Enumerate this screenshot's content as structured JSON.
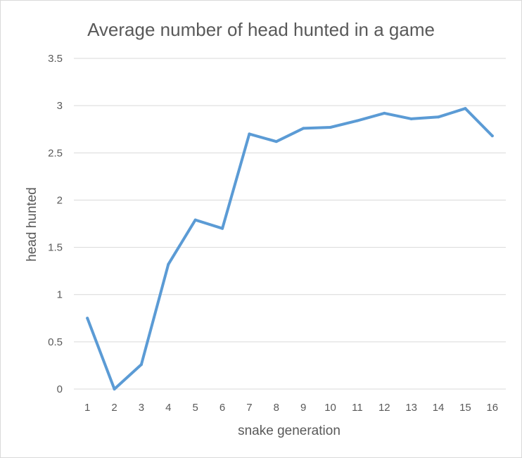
{
  "chart_data": {
    "type": "line",
    "title": "Average number of head hunted in a game",
    "xlabel": "snake generation",
    "ylabel": "head hunted",
    "categories": [
      "1",
      "2",
      "3",
      "4",
      "5",
      "6",
      "7",
      "8",
      "9",
      "10",
      "11",
      "12",
      "13",
      "14",
      "15",
      "16"
    ],
    "series": [
      {
        "values": [
          0.75,
          0.0,
          0.26,
          1.32,
          1.79,
          1.7,
          2.7,
          2.62,
          2.76,
          2.77,
          2.84,
          2.92,
          2.86,
          2.88,
          2.97,
          2.68
        ]
      }
    ],
    "y_ticks": [
      "0",
      "0.5",
      "1",
      "1.5",
      "2",
      "2.5",
      "3",
      "3.5"
    ],
    "ylim": [
      0,
      3.5
    ],
    "grid": "horizontal",
    "legend": "none",
    "colors": {
      "line": "#5B9BD5",
      "grid": "#d9d9d9",
      "text": "#595959"
    }
  }
}
